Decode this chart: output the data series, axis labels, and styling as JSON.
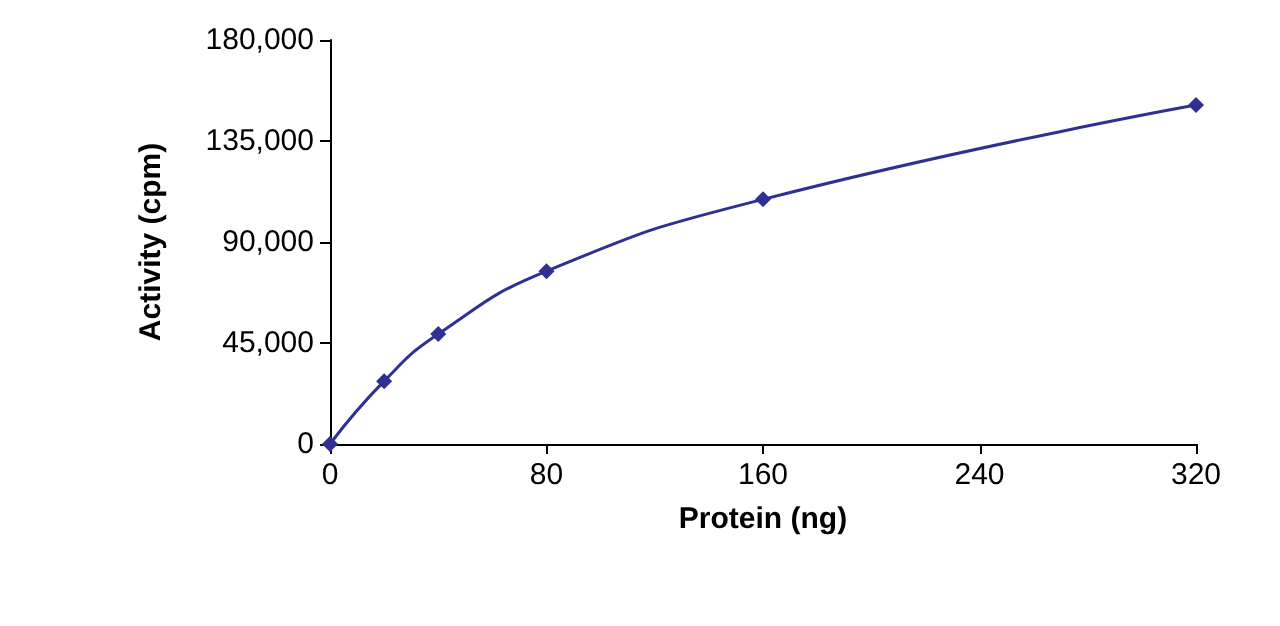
{
  "chart_data": {
    "type": "line",
    "xlabel": "Protein (ng)",
    "ylabel": "Activity (cpm)",
    "x": [
      0,
      20,
      40,
      80,
      160,
      320
    ],
    "series": [
      {
        "color": "#2e3192",
        "values": [
          0,
          28000,
          49000,
          77000,
          109000,
          151000
        ]
      }
    ],
    "xlim": [
      0,
      320
    ],
    "xticks": [
      0,
      80,
      160,
      240,
      320
    ],
    "ylim": [
      0,
      180000
    ],
    "yticks": [
      {
        "value": 0,
        "label": "0"
      },
      {
        "value": 45000,
        "label": "45,000"
      },
      {
        "value": 90000,
        "label": "90,000"
      },
      {
        "value": 135000,
        "label": "135,000"
      },
      {
        "value": 180000,
        "label": "180,000"
      }
    ],
    "grid": false,
    "marker": "diamond",
    "line_style": "solid"
  }
}
